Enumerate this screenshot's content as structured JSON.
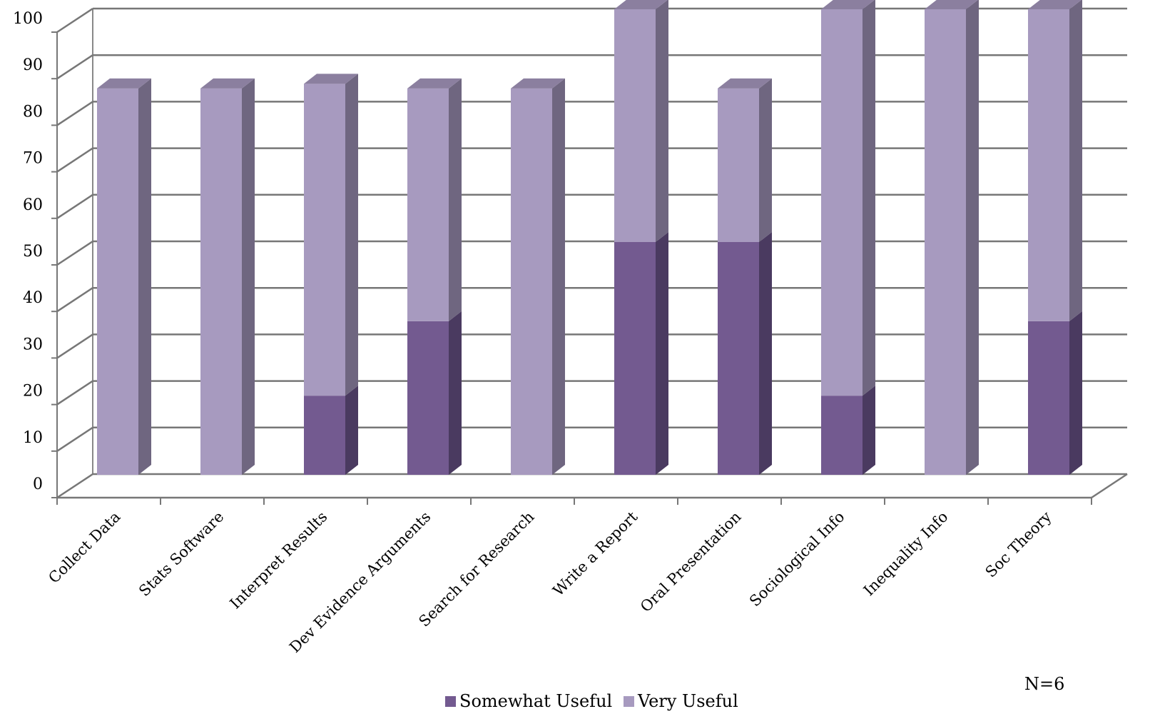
{
  "chart_data": {
    "type": "bar",
    "stacked": true,
    "three_d": true,
    "categories": [
      "Collect Data",
      "Stats Software",
      "Interpret Results",
      "Dev Evidence Arguments",
      "Search for Research",
      "Write a Report",
      "Oral Presentation",
      "Sociological Info",
      "Inequality Info",
      "Soc Theory"
    ],
    "series": [
      {
        "name": "Somewhat Useful",
        "values": [
          0,
          0,
          17,
          33,
          0,
          50,
          50,
          17,
          0,
          33
        ],
        "color": "#735a90",
        "side_color": "#4a3a60",
        "top_color": "#5f4a78"
      },
      {
        "name": "Very Useful",
        "values": [
          83,
          83,
          67,
          50,
          83,
          50,
          33,
          83,
          100,
          67
        ],
        "color": "#a79abf",
        "side_color": "#6f6680",
        "top_color": "#8b7f9f"
      }
    ],
    "ylim": [
      0,
      100
    ],
    "yticks": [
      "0",
      "10",
      "20",
      "30",
      "40",
      "50",
      "60",
      "70",
      "80",
      "90",
      "100"
    ],
    "grid": true,
    "legend_position": "bottom",
    "annotation": "N=6"
  }
}
